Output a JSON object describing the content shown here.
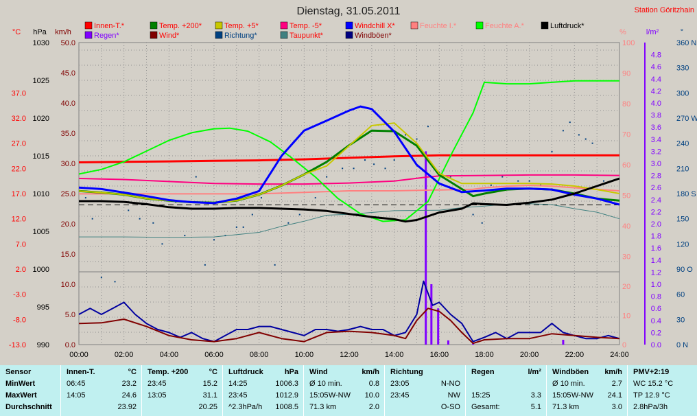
{
  "title": "Dienstag, 31.05.2011",
  "station": "Station Göritzhain",
  "legend": [
    {
      "label": "Innen-T.*",
      "color": "#ff0000",
      "text_color": "#ff0000"
    },
    {
      "label": "Temp. +200*",
      "color": "#008000",
      "text_color": "#ff0000"
    },
    {
      "label": "Temp. +5*",
      "color": "#c8c800",
      "text_color": "#ff0000"
    },
    {
      "label": "Temp. -5*",
      "color": "#ff0080",
      "text_color": "#ff0000"
    },
    {
      "label": "Windchill X*",
      "color": "#0000ff",
      "text_color": "#ff0000"
    },
    {
      "label": "Feuchte I.*",
      "color": "#ff8080",
      "text_color": "#ff8080"
    },
    {
      "label": "Feuchte A.*",
      "color": "#00ff00",
      "text_color": "#ff8080"
    },
    {
      "label": "Luftdruck*",
      "color": "#000000",
      "text_color": "#000000"
    },
    {
      "label": "Regen*",
      "color": "#8000ff",
      "text_color": "#8000ff"
    },
    {
      "label": "Wind*",
      "color": "#800000",
      "text_color": "#ff0000"
    },
    {
      "label": "Richtung*",
      "color": "#004080",
      "text_color": "#004080"
    },
    {
      "label": "Taupunkt*",
      "color": "#408080",
      "text_color": "#ff0000"
    },
    {
      "label": "Windböen*",
      "color": "#000080",
      "text_color": "#800000"
    }
  ],
  "axis_headers": {
    "temp_unit": "°C",
    "pressure_unit": "hPa",
    "wind_unit": "km/h",
    "humidity_unit": "%",
    "rain_unit": "l/m²",
    "direction_unit": "°"
  },
  "chart_data": {
    "type": "line",
    "x_ticks": [
      "00:00",
      "02:00",
      "04:00",
      "06:00",
      "08:00",
      "10:00",
      "12:00",
      "14:00",
      "16:00",
      "18:00",
      "20:00",
      "22:00",
      "24:00"
    ],
    "axes": {
      "celsius": {
        "ticks": [
          "37.0",
          "32.0",
          "27.0",
          "22.0",
          "17.0",
          "12.0",
          "7.0",
          "2.0",
          "-3.0",
          "-8.0",
          "-13.0"
        ],
        "range": [
          -13,
          47
        ]
      },
      "hpa": {
        "ticks": [
          "1030",
          "1025",
          "1020",
          "1015",
          "1010",
          "1005",
          "1000",
          "995",
          "990"
        ],
        "range": [
          990,
          1030
        ]
      },
      "kmh": {
        "ticks": [
          "50.0",
          "45.0",
          "40.0",
          "35.0",
          "30.0",
          "25.0",
          "20.0",
          "15.0",
          "10.0",
          "5.0",
          "0.0"
        ],
        "range": [
          0,
          50
        ]
      },
      "humidity": {
        "ticks": [
          "100",
          "90",
          "80",
          "70",
          "60",
          "50",
          "40",
          "30"
        ],
        "lower_ticks": [
          "20",
          "10",
          "0"
        ],
        "range": [
          25,
          100
        ],
        "lower_range": [
          0,
          25
        ]
      },
      "rain": {
        "ticks": [
          "4.8",
          "4.6",
          "4.4",
          "4.2",
          "4.0",
          "3.8",
          "3.6",
          "3.4",
          "3.2",
          "3.0",
          "2.8",
          "2.6",
          "2.4",
          "2.2",
          "2.0",
          "1.8",
          "1.6",
          "1.4",
          "1.2",
          "1.0",
          "0.8",
          "0.6",
          "0.4",
          "0.2",
          "0.0"
        ],
        "range": [
          0,
          5.0
        ]
      },
      "direction": {
        "ticks": [
          "360 N",
          "330",
          "300",
          "270 W",
          "240",
          "210",
          "180 S",
          "150",
          "120",
          "90 O",
          "60",
          "30",
          "0 N"
        ],
        "range": [
          0,
          360
        ]
      }
    },
    "series": [
      {
        "name": "Innen-T.*",
        "axis": "celsius",
        "color": "#ff0000",
        "width": 3,
        "x": [
          0,
          2,
          4,
          6,
          8,
          10,
          12,
          14,
          16,
          18,
          20,
          22,
          24
        ],
        "y": [
          23.2,
          23.3,
          23.4,
          23.5,
          23.6,
          23.8,
          24.1,
          24.4,
          24.6,
          24.6,
          24.6,
          24.6,
          24.6
        ]
      },
      {
        "name": "Temp. -5*",
        "axis": "celsius",
        "color": "#ff0080",
        "width": 2,
        "x": [
          0,
          2,
          4,
          6,
          8,
          10,
          12,
          14,
          15.5,
          16,
          18,
          20,
          22,
          24
        ],
        "y": [
          20.0,
          19.8,
          19.4,
          19.0,
          18.9,
          18.9,
          19.1,
          19.5,
          20.3,
          20.5,
          20.6,
          20.7,
          20.7,
          20.6
        ]
      },
      {
        "name": "Feuchte I.*",
        "axis": "humidity",
        "color": "#ff8080",
        "width": 2,
        "x": [
          0,
          2,
          4,
          6,
          8,
          10,
          12,
          14,
          16,
          17.5,
          18,
          19,
          20,
          21,
          22,
          23,
          24
        ],
        "y": [
          50.5,
          50.5,
          50.5,
          50.5,
          50.5,
          51,
          51.5,
          51.5,
          51.8,
          52,
          52.5,
          53,
          53.3,
          53,
          52.5,
          52,
          51.5
        ]
      },
      {
        "name": "Taupunkt*",
        "axis": "celsius",
        "color": "#408080",
        "width": 1,
        "x": [
          0,
          2,
          4,
          6,
          8,
          9,
          10,
          11,
          12,
          14,
          16,
          17,
          18,
          19,
          20,
          21,
          22,
          23,
          24
        ],
        "y": [
          8.4,
          8.4,
          8.3,
          8.4,
          9.3,
          10.5,
          11.5,
          12.7,
          12.9,
          13.6,
          13.7,
          14.2,
          14.5,
          14.9,
          15.0,
          14.8,
          14.0,
          13.3,
          12.0
        ]
      },
      {
        "name": "Feuchte A.*",
        "axis": "humidity",
        "color": "#00ff00",
        "width": 2,
        "x": [
          0,
          1,
          2,
          3,
          4,
          5,
          6,
          6.7,
          7.5,
          8.5,
          9.5,
          10.5,
          11.5,
          12.5,
          13.5,
          14.5,
          15.5,
          16.5,
          17.5,
          18,
          19,
          20,
          21,
          22,
          23,
          24
        ],
        "y": [
          57,
          58.5,
          61,
          64.5,
          68,
          70.5,
          71.8,
          72,
          71,
          67.5,
          62,
          56,
          49,
          44,
          41.5,
          42,
          48,
          63,
          77,
          87,
          86.5,
          86.5,
          87,
          87.5,
          87.5,
          87.5
        ]
      },
      {
        "name": "Temp. +200*",
        "axis": "celsius",
        "color": "#008000",
        "width": 3,
        "x": [
          0,
          1,
          2,
          3,
          4,
          5,
          6,
          7,
          8,
          9,
          10,
          11,
          12,
          13,
          14,
          15,
          16,
          17,
          17.5,
          18,
          19,
          20,
          21,
          22,
          23,
          24
        ],
        "y": [
          17.5,
          17.2,
          16.8,
          16.0,
          15.6,
          15.3,
          15.2,
          15.6,
          16.8,
          18.6,
          20.8,
          23.3,
          26.6,
          29.5,
          29.4,
          26.5,
          20.7,
          17.9,
          16.5,
          17.0,
          17.8,
          18.0,
          17.8,
          17.0,
          16.0,
          15.6
        ]
      },
      {
        "name": "Temp. +5*",
        "axis": "celsius",
        "color": "#c8c800",
        "width": 2,
        "x": [
          0,
          1,
          2,
          3,
          4,
          5,
          6,
          7,
          8,
          9,
          10,
          11,
          12,
          13,
          14,
          15,
          16,
          17,
          18,
          19,
          20,
          21,
          22,
          23,
          24
        ],
        "y": [
          17.5,
          17.2,
          16.8,
          16.0,
          15.6,
          15.3,
          15.2,
          15.6,
          16.8,
          18.6,
          20.8,
          22.5,
          26.5,
          30.5,
          31.0,
          27.0,
          21.0,
          19.0,
          19.0,
          19.0,
          19.0,
          18.9,
          18.5,
          17.8,
          17.0
        ]
      },
      {
        "name": "Windchill X*",
        "axis": "celsius",
        "color": "#0000ff",
        "width": 3,
        "x": [
          0,
          1,
          2,
          3,
          4,
          5,
          6,
          7,
          8,
          9,
          10,
          11,
          12,
          12.5,
          13,
          14,
          15,
          16,
          17,
          18,
          19,
          20,
          21,
          22,
          23,
          24
        ],
        "y": [
          18.2,
          17.9,
          17.2,
          16.5,
          15.7,
          15.3,
          15.1,
          16.0,
          17.5,
          24.5,
          29.5,
          31.5,
          33.5,
          34.3,
          33.8,
          29.3,
          22.7,
          19.0,
          17.3,
          17.6,
          18.0,
          18.0,
          17.8,
          16.8,
          16.0,
          14.8
        ]
      },
      {
        "name": "Luftdruck*",
        "axis": "hpa",
        "color": "#000000",
        "width": 3,
        "x": [
          0,
          1,
          2,
          3,
          4,
          5,
          6,
          7,
          8,
          9,
          10,
          11,
          12,
          13,
          14,
          14.5,
          15,
          16,
          17,
          17.5,
          18,
          19,
          20,
          21,
          22,
          23,
          24
        ],
        "y": [
          1009.0,
          1009.0,
          1008.9,
          1008.6,
          1008.2,
          1008.0,
          1008.0,
          1008.1,
          1008.1,
          1008.0,
          1007.9,
          1007.7,
          1007.3,
          1006.9,
          1006.6,
          1006.3,
          1006.5,
          1007.5,
          1008.0,
          1008.7,
          1008.6,
          1008.5,
          1008.8,
          1009.2,
          1010.0,
          1011.0,
          1012.0
        ]
      },
      {
        "name": "Windböen*",
        "axis": "kmh",
        "color": "#0000a0",
        "width": 2,
        "x": [
          0,
          0.5,
          1,
          1.5,
          2,
          2.5,
          3,
          3.5,
          4,
          4.5,
          5,
          5.5,
          6,
          6.5,
          7,
          7.5,
          8,
          8.5,
          9,
          9.5,
          10,
          10.5,
          11,
          11.5,
          12,
          12.5,
          13,
          13.5,
          14,
          14.5,
          15,
          15.3,
          15.7,
          16,
          16.5,
          17,
          17.5,
          18,
          18.5,
          19,
          19.5,
          20,
          20.5,
          21,
          21.5,
          22,
          22.5,
          23,
          23.5,
          24
        ],
        "y": [
          5,
          6,
          5,
          6,
          7,
          5,
          3.5,
          2.5,
          2,
          1.2,
          2,
          1,
          0.5,
          1.5,
          2.5,
          2.5,
          3,
          3,
          2.5,
          2,
          1.5,
          2.5,
          2.5,
          2.2,
          2.5,
          3,
          2.5,
          2.5,
          1.5,
          2,
          5,
          10.5,
          6.5,
          7,
          5,
          3.5,
          0.5,
          1.2,
          2,
          1,
          2,
          2,
          2,
          3.5,
          2,
          1.5,
          1,
          1,
          1.5,
          1
        ]
      },
      {
        "name": "Wind*",
        "axis": "kmh",
        "color": "#800000",
        "width": 2,
        "x": [
          0,
          1,
          2,
          3,
          4,
          5,
          6,
          7,
          8,
          9,
          10,
          11,
          12,
          13,
          14,
          14.5,
          15,
          15.5,
          16,
          16.5,
          17,
          17.5,
          18,
          19,
          20,
          21,
          22,
          23,
          24
        ],
        "y": [
          3.5,
          3.6,
          4.2,
          3.0,
          1.5,
          0.8,
          0.5,
          1.0,
          2.0,
          1.0,
          0.5,
          2.0,
          2.2,
          2.0,
          1.5,
          1.0,
          4.0,
          6.0,
          5.5,
          4.0,
          2.0,
          0.2,
          0.8,
          1.0,
          1.0,
          1.8,
          1.5,
          1.2,
          1.0
        ]
      }
    ],
    "direction_points": {
      "axis": "direction",
      "color": "#004080",
      "x": [
        0.3,
        0.6,
        1.0,
        1.6,
        2.2,
        2.7,
        3.3,
        3.7,
        4.3,
        4.7,
        5.2,
        5.6,
        6.0,
        6.5,
        7.0,
        7.3,
        7.7,
        8.1,
        8.7,
        9.3,
        9.8,
        10.5,
        11.0,
        11.7,
        12.2,
        12.7,
        13.1,
        13.6,
        14.0,
        14.5,
        15.0,
        15.5,
        16.0,
        16.5,
        17.5,
        17.9,
        18.3,
        18.8,
        19.5,
        20.0,
        20.5,
        21.0,
        21.5,
        21.8,
        22.2,
        22.5,
        22.8,
        23.3
      ],
      "y": [
        175,
        150,
        80,
        75,
        160,
        150,
        145,
        120,
        170,
        130,
        200,
        95,
        125,
        130,
        140,
        140,
        155,
        175,
        95,
        145,
        155,
        175,
        200,
        210,
        210,
        220,
        215,
        210,
        220,
        250,
        245,
        260,
        205,
        200,
        155,
        145,
        190,
        200,
        195,
        195,
        190,
        230,
        255,
        265,
        250,
        245,
        240,
        195
      ]
    },
    "rain": {
      "axis": "rain",
      "color": "#8000ff",
      "x": [
        15.4,
        15.65,
        15.95,
        16.4,
        17.5,
        21.5
      ],
      "y": [
        3.2,
        1.0,
        0.6,
        0.07,
        0.02,
        0.08
      ]
    },
    "reference_line": {
      "axis": "hpa",
      "value": 1008.5
    }
  },
  "stats": {
    "cols": [
      {
        "rows": [
          [
            "Sensor"
          ],
          [
            "MinWert"
          ],
          [
            "MaxWert"
          ],
          [
            "Durchschnitt"
          ]
        ]
      },
      {
        "rows": [
          [
            "Innen-T.",
            "°C"
          ],
          [
            "06:45",
            "",
            "23.2"
          ],
          [
            "14:05",
            "",
            "24.6"
          ],
          [
            "",
            "",
            "23.92"
          ]
        ]
      },
      {
        "rows": [
          [
            "Temp. +200",
            "°C"
          ],
          [
            "23:45",
            "",
            "15.2"
          ],
          [
            "13:05",
            "",
            "31.1"
          ],
          [
            "",
            "",
            "20.25"
          ]
        ]
      },
      {
        "rows": [
          [
            "Luftdruck",
            "hPa"
          ],
          [
            "14:25",
            "",
            "1006.3"
          ],
          [
            "23:45",
            "",
            "1012.9"
          ],
          [
            "^2.3hPa/h",
            "",
            "1008.5"
          ]
        ]
      },
      {
        "rows": [
          [
            "Wind",
            "km/h"
          ],
          [
            "Ø 10 min.",
            "",
            "0.8"
          ],
          [
            "15:05",
            "W-NW",
            "10.0"
          ],
          [
            "71.3 km",
            "",
            "2.0"
          ]
        ]
      },
      {
        "rows": [
          [
            "Richtung",
            ""
          ],
          [
            "23:05",
            "",
            "N-NO"
          ],
          [
            "23:45",
            "",
            "NW"
          ],
          [
            "",
            "",
            "O-SO"
          ]
        ]
      },
      {
        "rows": [
          [
            "Regen",
            "l/m²"
          ],
          [
            "",
            "",
            ""
          ],
          [
            "15:25",
            "",
            "3.3"
          ],
          [
            "Gesamt:",
            "",
            "5.1"
          ]
        ]
      },
      {
        "rows": [
          [
            "Windböen",
            "km/h"
          ],
          [
            "Ø 10 min.",
            "",
            "2.7"
          ],
          [
            "15:05",
            "W-NW",
            "24.1"
          ],
          [
            "71.3 km",
            "",
            "3.0"
          ]
        ]
      },
      {
        "rows": [
          [
            "PMV+2:19",
            ""
          ],
          [
            "WC 15.2 °C"
          ],
          [
            "TP 12.9 °C"
          ],
          [
            "2.8hPa/3h"
          ]
        ]
      }
    ]
  }
}
